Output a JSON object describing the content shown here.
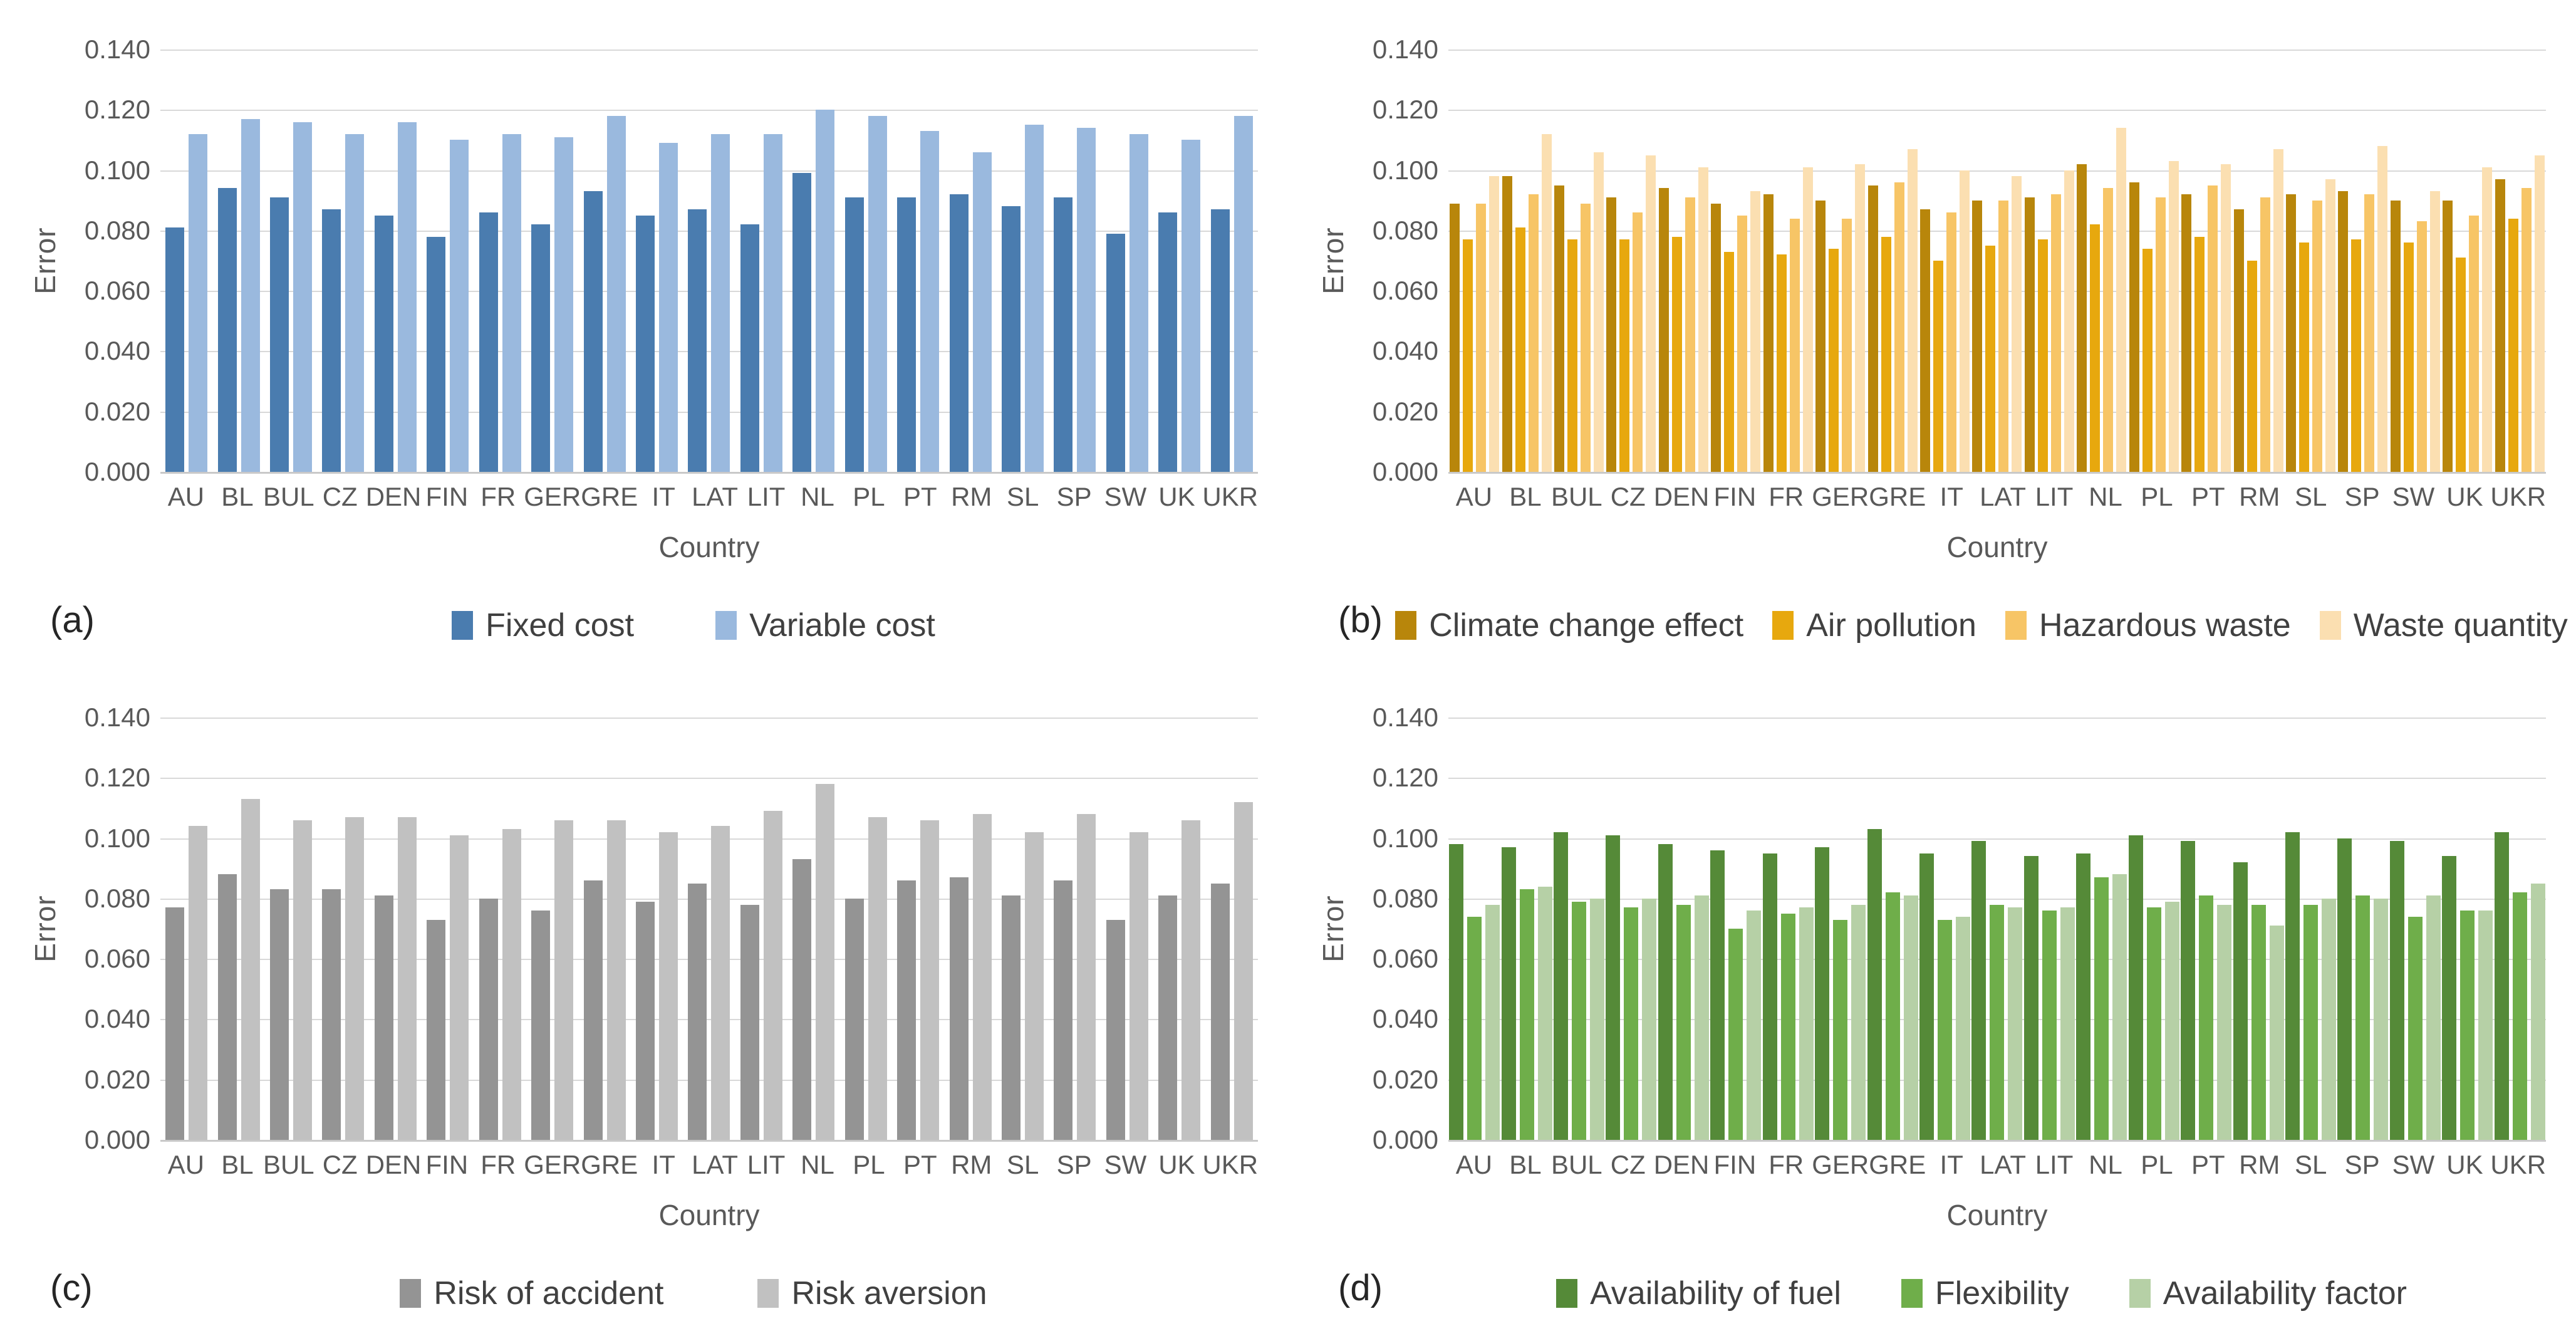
{
  "figure": {
    "y_ticks": [
      "0.140",
      "0.120",
      "0.100",
      "0.080",
      "0.060",
      "0.040",
      "0.020",
      "0.000"
    ],
    "y_axis_title": "Error",
    "x_axis_title": "Country"
  },
  "chart_data": [
    {
      "type": "bar",
      "panel_label": "(a)",
      "title": "",
      "xlabel": "Country",
      "ylabel": "Error",
      "ylim": [
        0,
        0.14
      ],
      "grid": true,
      "legend_position": "bottom",
      "categories": [
        "AU",
        "BL",
        "BUL",
        "CZ",
        "DEN",
        "FIN",
        "FR",
        "GER",
        "GRE",
        "IT",
        "LAT",
        "LIT",
        "NL",
        "PL",
        "PT",
        "RM",
        "SL",
        "SP",
        "SW",
        "UK",
        "UKR"
      ],
      "series": [
        {
          "name": "Fixed cost",
          "color": "#4A7CAF",
          "values": [
            0.081,
            0.094,
            0.091,
            0.087,
            0.085,
            0.078,
            0.086,
            0.082,
            0.093,
            0.085,
            0.087,
            0.082,
            0.099,
            0.091,
            0.091,
            0.092,
            0.088,
            0.091,
            0.079,
            0.086,
            0.087
          ]
        },
        {
          "name": "Variable cost",
          "color": "#9AB9DE",
          "values": [
            0.112,
            0.117,
            0.116,
            0.112,
            0.116,
            0.11,
            0.112,
            0.111,
            0.118,
            0.109,
            0.112,
            0.112,
            0.12,
            0.118,
            0.113,
            0.106,
            0.115,
            0.114,
            0.112,
            0.11,
            0.118
          ]
        }
      ]
    },
    {
      "type": "bar",
      "panel_label": "(b)",
      "title": "",
      "xlabel": "Country",
      "ylabel": "Error",
      "ylim": [
        0,
        0.14
      ],
      "grid": true,
      "legend_position": "bottom",
      "categories": [
        "AU",
        "BL",
        "BUL",
        "CZ",
        "DEN",
        "FIN",
        "FR",
        "GER",
        "GRE",
        "IT",
        "LAT",
        "LIT",
        "NL",
        "PL",
        "PT",
        "RM",
        "SL",
        "SP",
        "SW",
        "UK",
        "UKR"
      ],
      "series": [
        {
          "name": "Climate change effect",
          "color": "#B8860B",
          "values": [
            0.089,
            0.098,
            0.095,
            0.091,
            0.094,
            0.089,
            0.092,
            0.09,
            0.095,
            0.087,
            0.09,
            0.091,
            0.102,
            0.096,
            0.092,
            0.087,
            0.092,
            0.093,
            0.09,
            0.09,
            0.097
          ]
        },
        {
          "name": "Air pollution",
          "color": "#E7A80E",
          "values": [
            0.077,
            0.081,
            0.077,
            0.077,
            0.078,
            0.073,
            0.072,
            0.074,
            0.078,
            0.07,
            0.075,
            0.077,
            0.082,
            0.074,
            0.078,
            0.07,
            0.076,
            0.077,
            0.076,
            0.071,
            0.084
          ]
        },
        {
          "name": "Hazardous waste",
          "color": "#F7C566",
          "values": [
            0.089,
            0.092,
            0.089,
            0.086,
            0.091,
            0.085,
            0.084,
            0.084,
            0.096,
            0.086,
            0.09,
            0.092,
            0.094,
            0.091,
            0.095,
            0.091,
            0.09,
            0.092,
            0.083,
            0.085,
            0.094
          ]
        },
        {
          "name": "Waste quantity",
          "color": "#FBDFB1",
          "values": [
            0.098,
            0.112,
            0.106,
            0.105,
            0.101,
            0.093,
            0.101,
            0.102,
            0.107,
            0.1,
            0.098,
            0.1,
            0.114,
            0.103,
            0.102,
            0.107,
            0.097,
            0.108,
            0.093,
            0.101,
            0.105
          ]
        }
      ]
    },
    {
      "type": "bar",
      "panel_label": "(c)",
      "title": "",
      "xlabel": "Country",
      "ylabel": "Error",
      "ylim": [
        0,
        0.14
      ],
      "grid": true,
      "legend_position": "bottom",
      "categories": [
        "AU",
        "BL",
        "BUL",
        "CZ",
        "DEN",
        "FIN",
        "FR",
        "GER",
        "GRE",
        "IT",
        "LAT",
        "LIT",
        "NL",
        "PL",
        "PT",
        "RM",
        "SL",
        "SP",
        "SW",
        "UK",
        "UKR"
      ],
      "series": [
        {
          "name": "Risk of accident",
          "color": "#949494",
          "values": [
            0.077,
            0.088,
            0.083,
            0.083,
            0.081,
            0.073,
            0.08,
            0.076,
            0.086,
            0.079,
            0.085,
            0.078,
            0.093,
            0.08,
            0.086,
            0.087,
            0.081,
            0.086,
            0.073,
            0.081,
            0.085
          ]
        },
        {
          "name": "Risk aversion",
          "color": "#C1C1C1",
          "values": [
            0.104,
            0.113,
            0.106,
            0.107,
            0.107,
            0.101,
            0.103,
            0.106,
            0.106,
            0.102,
            0.104,
            0.109,
            0.118,
            0.107,
            0.106,
            0.108,
            0.102,
            0.108,
            0.102,
            0.106,
            0.112
          ]
        }
      ]
    },
    {
      "type": "bar",
      "panel_label": "(d)",
      "title": "",
      "xlabel": "Country",
      "ylabel": "Error",
      "ylim": [
        0,
        0.14
      ],
      "grid": true,
      "legend_position": "bottom",
      "categories": [
        "AU",
        "BL",
        "BUL",
        "CZ",
        "DEN",
        "FIN",
        "FR",
        "GER",
        "GRE",
        "IT",
        "LAT",
        "LIT",
        "NL",
        "PL",
        "PT",
        "RM",
        "SL",
        "SP",
        "SW",
        "UK",
        "UKR"
      ],
      "series": [
        {
          "name": "Availability of fuel",
          "color": "#558A38",
          "values": [
            0.098,
            0.097,
            0.102,
            0.101,
            0.098,
            0.096,
            0.095,
            0.097,
            0.103,
            0.095,
            0.099,
            0.094,
            0.095,
            0.101,
            0.099,
            0.092,
            0.102,
            0.1,
            0.099,
            0.094,
            0.102
          ]
        },
        {
          "name": "Flexibility",
          "color": "#6FAE4A",
          "values": [
            0.074,
            0.083,
            0.079,
            0.077,
            0.078,
            0.07,
            0.075,
            0.073,
            0.082,
            0.073,
            0.078,
            0.076,
            0.087,
            0.077,
            0.081,
            0.078,
            0.078,
            0.081,
            0.074,
            0.076,
            0.082
          ]
        },
        {
          "name": "Availability factor",
          "color": "#B6D0A6",
          "values": [
            0.078,
            0.084,
            0.08,
            0.08,
            0.081,
            0.076,
            0.077,
            0.078,
            0.081,
            0.074,
            0.077,
            0.077,
            0.088,
            0.079,
            0.078,
            0.071,
            0.08,
            0.08,
            0.081,
            0.076,
            0.085
          ]
        }
      ]
    }
  ]
}
